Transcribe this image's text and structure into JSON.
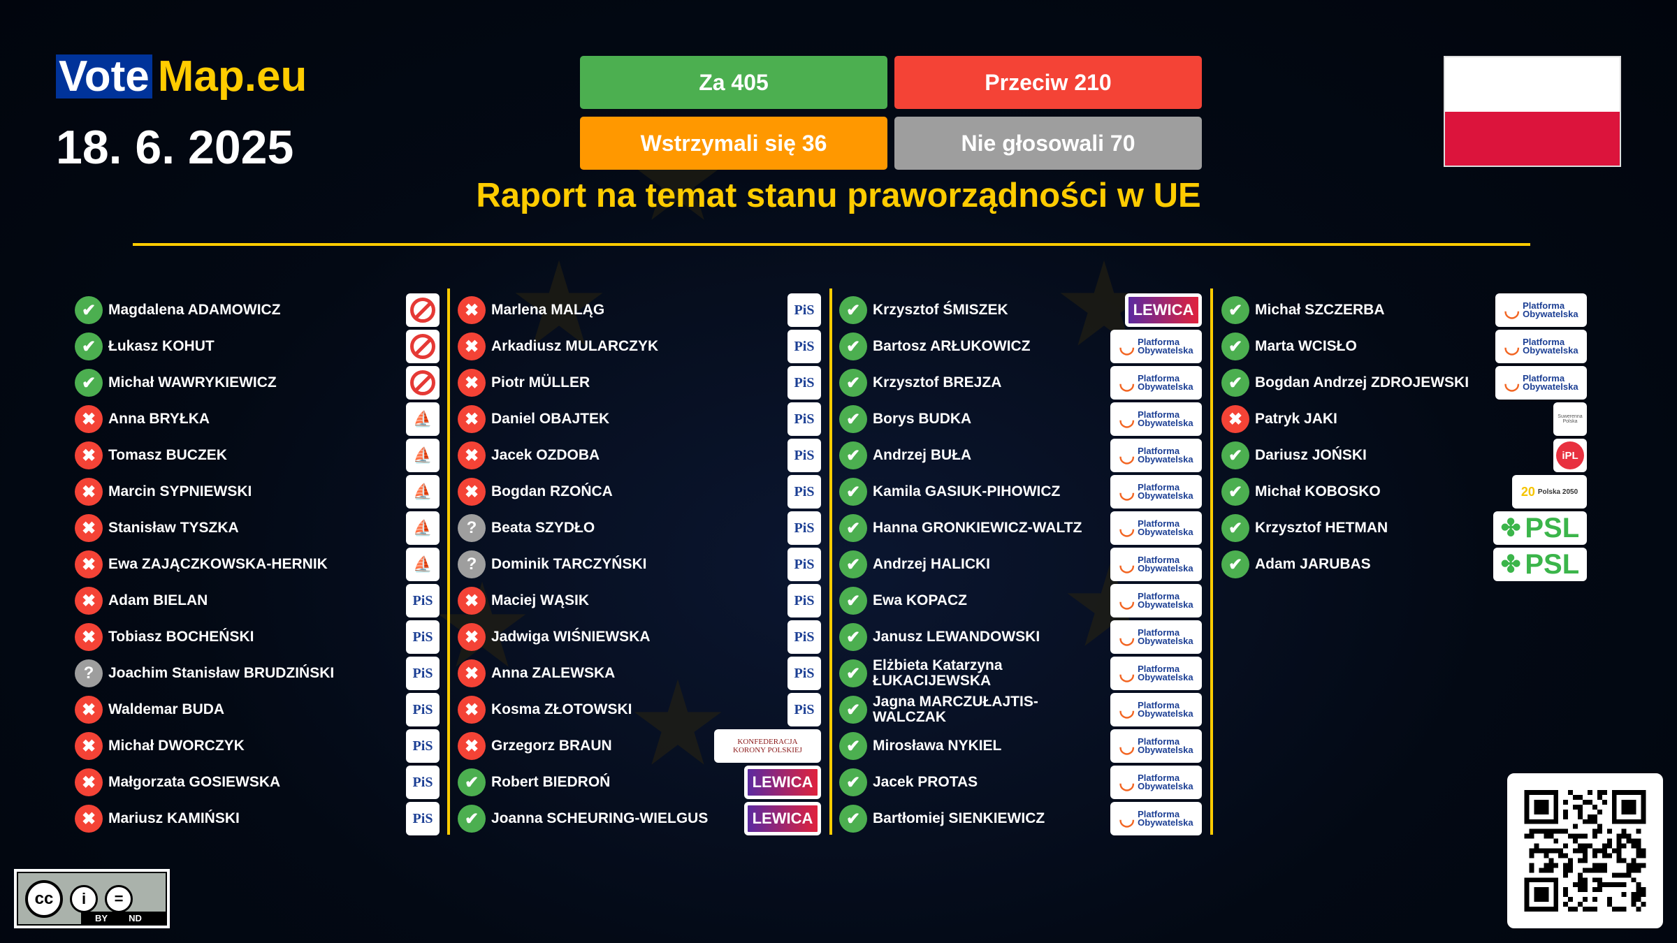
{
  "header": {
    "logo_vote": "Vote",
    "logo_map": "Map.eu",
    "date": "18. 6. 2025",
    "title": "Raport na temat stanu praworządności w UE"
  },
  "tally": {
    "for": "Za 405",
    "against": "Przeciw 210",
    "abstain": "Wstrzymali się 36",
    "absent": "Nie głosowali 70"
  },
  "colors": {
    "for": "#4caf50",
    "against": "#f44336",
    "abstain": "#ff9800",
    "absent": "#9e9e9e",
    "accent": "#ffcc00",
    "background": "#030914"
  },
  "flag": "Poland",
  "license": {
    "icon": "cc-by-nd",
    "by": "BY",
    "nd": "ND"
  },
  "qr_icon": "qr-code",
  "parties": {
    "lewica": "LEWICA",
    "po": "Platforma Obywatelska",
    "psl": "PSL",
    "pis": "PiS",
    "kkp": "KONFEDERACJA KORONY POLSKIEJ",
    "p2050": "Polska 2050",
    "ipl": "iPL",
    "sp": "Suwerenna Polska"
  },
  "columns": [
    [
      {
        "name": "Magdalena ADAMOWICZ",
        "vote": "for",
        "party": "ban"
      },
      {
        "name": "Łukasz KOHUT",
        "vote": "for",
        "party": "ban"
      },
      {
        "name": "Michał WAWRYKIEWICZ",
        "vote": "for",
        "party": "ban"
      },
      {
        "name": "Anna BRYŁKA",
        "vote": "against",
        "party": "konf"
      },
      {
        "name": "Tomasz BUCZEK",
        "vote": "against",
        "party": "konf"
      },
      {
        "name": "Marcin SYPNIEWSKI",
        "vote": "against",
        "party": "konf"
      },
      {
        "name": "Stanisław TYSZKA",
        "vote": "against",
        "party": "konf"
      },
      {
        "name": "Ewa ZAJĄCZKOWSKA-HERNIK",
        "vote": "against",
        "party": "konf"
      },
      {
        "name": "Adam BIELAN",
        "vote": "against",
        "party": "pis"
      },
      {
        "name": "Tobiasz BOCHEŃSKI",
        "vote": "against",
        "party": "pis"
      },
      {
        "name": "Joachim Stanisław BRUDZIŃSKI",
        "vote": "absent",
        "party": "pis"
      },
      {
        "name": "Waldemar BUDA",
        "vote": "against",
        "party": "pis"
      },
      {
        "name": "Michał DWORCZYK",
        "vote": "against",
        "party": "pis"
      },
      {
        "name": "Małgorzata GOSIEWSKA",
        "vote": "against",
        "party": "pis"
      },
      {
        "name": "Mariusz KAMIŃSKI",
        "vote": "against",
        "party": "pis"
      }
    ],
    [
      {
        "name": "Marlena MALĄG",
        "vote": "against",
        "party": "pis"
      },
      {
        "name": "Arkadiusz MULARCZYK",
        "vote": "against",
        "party": "pis"
      },
      {
        "name": "Piotr MÜLLER",
        "vote": "against",
        "party": "pis"
      },
      {
        "name": "Daniel OBAJTEK",
        "vote": "against",
        "party": "pis"
      },
      {
        "name": "Jacek OZDOBA",
        "vote": "against",
        "party": "pis"
      },
      {
        "name": "Bogdan RZOŃCA",
        "vote": "against",
        "party": "pis"
      },
      {
        "name": "Beata SZYDŁO",
        "vote": "absent",
        "party": "pis"
      },
      {
        "name": "Dominik TARCZYŃSKI",
        "vote": "absent",
        "party": "pis"
      },
      {
        "name": "Maciej WĄSIK",
        "vote": "against",
        "party": "pis"
      },
      {
        "name": "Jadwiga WIŚNIEWSKA",
        "vote": "against",
        "party": "pis"
      },
      {
        "name": "Anna ZALEWSKA",
        "vote": "against",
        "party": "pis"
      },
      {
        "name": "Kosma ZŁOTOWSKI",
        "vote": "against",
        "party": "pis"
      },
      {
        "name": "Grzegorz BRAUN",
        "vote": "against",
        "party": "kkp"
      },
      {
        "name": "Robert BIEDROŃ",
        "vote": "for",
        "party": "lewica"
      },
      {
        "name": "Joanna SCHEURING-WIELGUS",
        "vote": "for",
        "party": "lewica"
      }
    ],
    [
      {
        "name": "Krzysztof ŚMISZEK",
        "vote": "for",
        "party": "lewica"
      },
      {
        "name": "Bartosz ARŁUKOWICZ",
        "vote": "for",
        "party": "po"
      },
      {
        "name": "Krzysztof BREJZA",
        "vote": "for",
        "party": "po"
      },
      {
        "name": "Borys BUDKA",
        "vote": "for",
        "party": "po"
      },
      {
        "name": "Andrzej BUŁA",
        "vote": "for",
        "party": "po"
      },
      {
        "name": "Kamila GASIUK-PIHOWICZ",
        "vote": "for",
        "party": "po"
      },
      {
        "name": "Hanna GRONKIEWICZ-WALTZ",
        "vote": "for",
        "party": "po"
      },
      {
        "name": "Andrzej HALICKI",
        "vote": "for",
        "party": "po"
      },
      {
        "name": "Ewa KOPACZ",
        "vote": "for",
        "party": "po"
      },
      {
        "name": "Janusz LEWANDOWSKI",
        "vote": "for",
        "party": "po"
      },
      {
        "name": "Elżbieta Katarzyna ŁUKACIJEWSKA",
        "vote": "for",
        "party": "po"
      },
      {
        "name": "Jagna MARCZUŁAJTIS-WALCZAK",
        "vote": "for",
        "party": "po"
      },
      {
        "name": "Mirosława NYKIEL",
        "vote": "for",
        "party": "po"
      },
      {
        "name": "Jacek PROTAS",
        "vote": "for",
        "party": "po"
      },
      {
        "name": "Bartłomiej SIENKIEWICZ",
        "vote": "for",
        "party": "po"
      }
    ],
    [
      {
        "name": "Michał SZCZERBA",
        "vote": "for",
        "party": "po"
      },
      {
        "name": "Marta WCISŁO",
        "vote": "for",
        "party": "po"
      },
      {
        "name": "Bogdan Andrzej ZDROJEWSKI",
        "vote": "for",
        "party": "po"
      },
      {
        "name": "Patryk JAKI",
        "vote": "against",
        "party": "sp"
      },
      {
        "name": "Dariusz JOŃSKI",
        "vote": "for",
        "party": "ipl"
      },
      {
        "name": "Michał KOBOSKO",
        "vote": "for",
        "party": "p2050"
      },
      {
        "name": "Krzysztof HETMAN",
        "vote": "for",
        "party": "psl"
      },
      {
        "name": "Adam JARUBAS",
        "vote": "for",
        "party": "psl"
      }
    ]
  ]
}
